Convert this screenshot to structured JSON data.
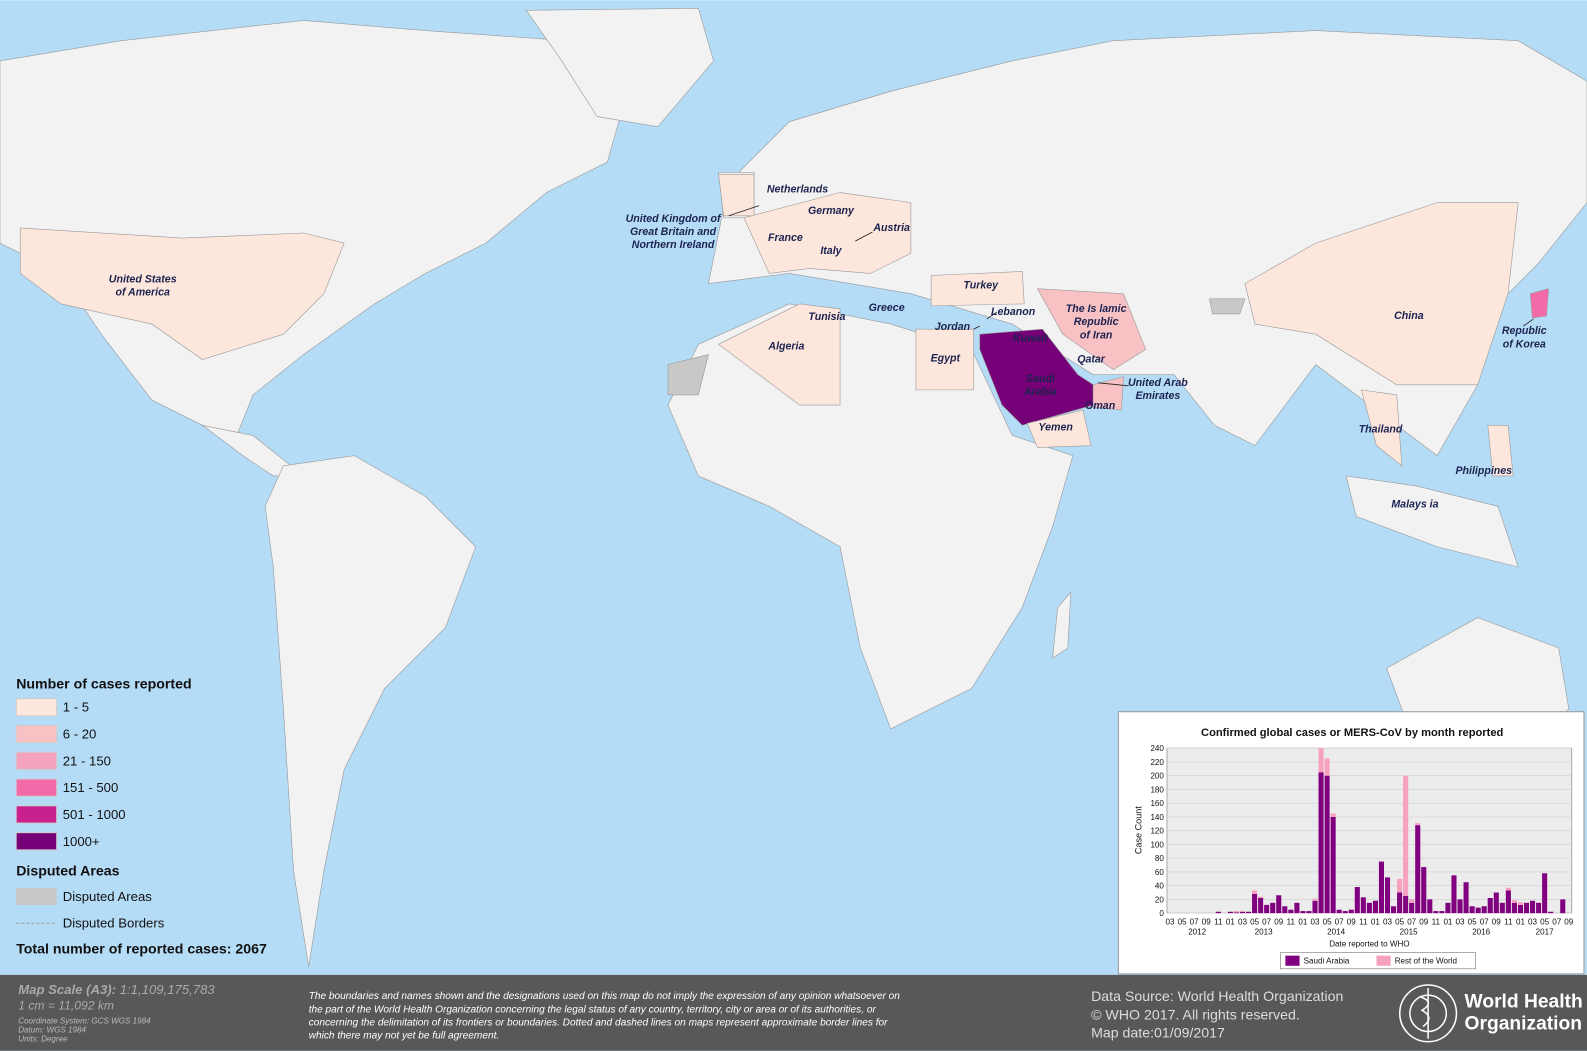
{
  "map": {
    "labels": [
      [
        "Netherlands"
      ],
      [
        "Germany"
      ],
      [
        "United Kingdom of",
        "Great Britain and",
        "Northern Ireland"
      ],
      [
        "Austria"
      ],
      [
        "France"
      ],
      [
        "Italy"
      ],
      [
        "United States",
        "of America"
      ],
      [
        "Turkey"
      ],
      [
        "Lebanon"
      ],
      [
        "The Is lamic",
        "Republic",
        "of Iran"
      ],
      [
        "Tunisia"
      ],
      [
        "Jordan"
      ],
      [
        "Kuwait"
      ],
      [
        "Greece"
      ],
      [
        "Algeria"
      ],
      [
        "Egypt"
      ],
      [
        "Qatar"
      ],
      [
        "Saudi",
        "Arabia"
      ],
      [
        "United Arab",
        "Emirates"
      ],
      [
        "Oman"
      ],
      [
        "Yemen"
      ],
      [
        "China"
      ],
      [
        "Republic",
        "of Korea"
      ],
      [
        "Thailand"
      ],
      [
        "Philippines"
      ],
      [
        "Malays ia"
      ]
    ]
  },
  "legend": {
    "title": "Number of cases reported",
    "items": [
      {
        "label": "1 - 5",
        "color": "#fde6dc"
      },
      {
        "label": "6 - 20",
        "color": "#f8c2c4"
      },
      {
        "label": "21 - 150",
        "color": "#f5a3bd"
      },
      {
        "label": "151 - 500",
        "color": "#f26aa7"
      },
      {
        "label": "501 - 1000",
        "color": "#c8208f"
      },
      {
        "label": "1000+",
        "color": "#760077"
      }
    ],
    "disputed_title": "Disputed Areas",
    "disputed_items": [
      "Disputed Areas",
      "Disputed Borders"
    ],
    "total_label": "Total number of reported cases:",
    "total": 2067
  },
  "footer": {
    "scale_label": "Map Scale (A3):",
    "scale": "1:1,109,175,783",
    "cm": "1 cm = 11,092 km",
    "coord": "Coordinate System: GCS WGS 1984",
    "datum": "Datum: WGS 1984",
    "units": "Units: Degree",
    "disclaimer": [
      "The boundaries and names shown and the designations used on this map do not imply the expression of any opinion whatsoever on",
      "the part of the World Health Organization concerning the legal status of any country, territory, city or area or of its authorities, or",
      "concerning the delimitation of its frontiers or boundaries. Dotted and dashed lines on maps represent approximate border lines for",
      "which there may not yet be full agreement."
    ],
    "source": "Data Source: World Health Organization",
    "copyright": "© WHO 2017. All rights reserved.",
    "date": "Map date:01/09/2017",
    "logo": [
      "World Health",
      "Organization"
    ]
  },
  "chart_data": {
    "type": "bar",
    "stacked": true,
    "title": "Confirmed global cases or MERS-CoV by month reported",
    "x_label": "Date reported to WHO",
    "y_label": "Case Count",
    "categories": [
      "03",
      null,
      "05",
      null,
      "07",
      null,
      "09",
      null,
      "11",
      null,
      "01",
      null,
      "03",
      null,
      "05",
      null,
      "07",
      null,
      "09",
      null,
      "11",
      null,
      "01",
      null,
      "03",
      null,
      "05",
      null,
      "07",
      null,
      "09",
      null,
      "11",
      null,
      "01",
      null,
      "03",
      null,
      "05",
      null,
      "07",
      null,
      "09",
      null,
      "11",
      null,
      "01",
      null,
      "03",
      null,
      "05",
      null,
      "07",
      null,
      "09",
      null,
      "11",
      null,
      "01",
      null,
      "03",
      null,
      "05",
      null,
      "07",
      null,
      "09"
    ],
    "x_groups": [
      "2012",
      "2013",
      "2014",
      "2015",
      "2016",
      "2017"
    ],
    "series": [
      {
        "name": "Saudi Arabia",
        "color": "#800080",
        "values": [
          0,
          0,
          0,
          0,
          0,
          0,
          0,
          0,
          2,
          0,
          2,
          1,
          2,
          2,
          28,
          22,
          12,
          15,
          26,
          10,
          5,
          15,
          3,
          3,
          18,
          205,
          200,
          140,
          5,
          3,
          5,
          38,
          23,
          15,
          18,
          75,
          52,
          10,
          30,
          25,
          15,
          128,
          67,
          20,
          3,
          3,
          15,
          55,
          20,
          45,
          10,
          8,
          10,
          22,
          30,
          15,
          33,
          15,
          12,
          15,
          18,
          15,
          58,
          2,
          0,
          20,
          0
        ]
      },
      {
        "name": "Rest of the World",
        "color": "#f6a1c0",
        "values": [
          0,
          0,
          0,
          0,
          0,
          0,
          0,
          0,
          0,
          0,
          0,
          2,
          1,
          0,
          5,
          2,
          0,
          0,
          0,
          0,
          0,
          0,
          0,
          0,
          3,
          35,
          25,
          5,
          0,
          0,
          0,
          0,
          0,
          0,
          0,
          0,
          0,
          0,
          20,
          175,
          5,
          3,
          0,
          0,
          0,
          0,
          0,
          0,
          0,
          0,
          0,
          0,
          0,
          0,
          0,
          0,
          4,
          4,
          4,
          0,
          0,
          0,
          0,
          0,
          0,
          0,
          0
        ]
      }
    ],
    "ylim": [
      0,
      240
    ],
    "yticks": [
      0,
      20,
      40,
      60,
      80,
      100,
      120,
      140,
      160,
      180,
      200,
      220,
      240
    ],
    "grid": true
  }
}
